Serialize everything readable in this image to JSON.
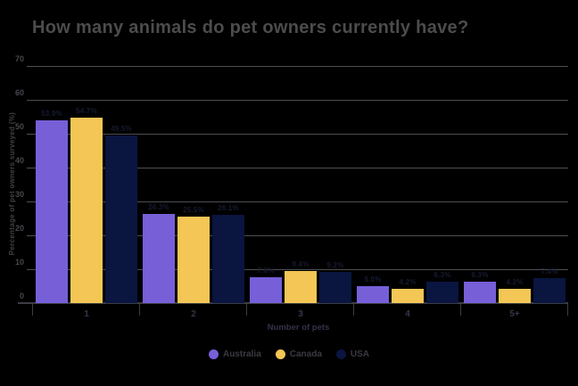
{
  "chart_data": {
    "type": "bar",
    "title": "How many animals do pet owners currently have?",
    "xlabel": "Number of pets",
    "ylabel": "Percentage of pet owners surveyed (%)",
    "categories": [
      "1",
      "2",
      "3",
      "4",
      "5+"
    ],
    "series": [
      {
        "name": "Australia",
        "color": "#775fd8",
        "values": [
          53.9,
          26.3,
          7.6,
          5.0,
          6.3
        ],
        "labels": [
          "53.9%",
          "26.3%",
          "7.6%",
          "5.0%",
          "6.3%"
        ]
      },
      {
        "name": "Canada",
        "color": "#f3c655",
        "values": [
          54.7,
          25.5,
          9.4,
          4.2,
          4.2
        ],
        "labels": [
          "54.7%",
          "25.5%",
          "9.4%",
          "4.2%",
          "4.2%"
        ]
      },
      {
        "name": "USA",
        "color": "#0a1540",
        "values": [
          49.5,
          26.1,
          9.2,
          6.3,
          7.4
        ],
        "labels": [
          "49.5%",
          "26.1%",
          "9.2%",
          "6.3%",
          "7.4%"
        ]
      }
    ],
    "ylim": [
      0,
      70
    ],
    "yticks": [
      0,
      10,
      20,
      30,
      40,
      50,
      60,
      70
    ],
    "grid": true,
    "legend_position": "bottom"
  },
  "colors": {
    "background": "#000000",
    "title_text": "#4c4c4d",
    "gridline": "#4d4e53",
    "axis_line": "#3c3d43",
    "tick_text": "#46474d",
    "data_label_text": "#171b30"
  }
}
